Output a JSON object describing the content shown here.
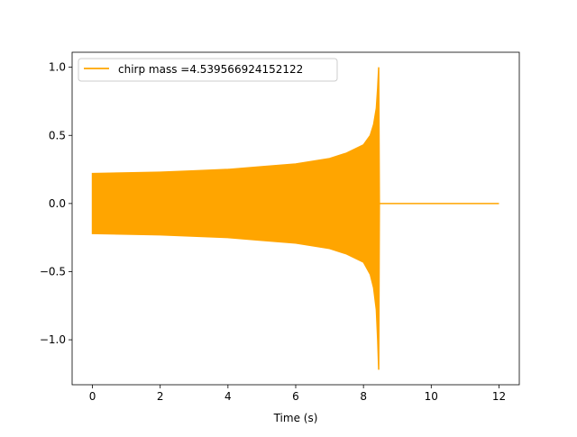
{
  "chart_data": {
    "type": "line",
    "title": "",
    "xlabel": "Time (s)",
    "ylabel": "",
    "xlim": [
      -0.6,
      12.6
    ],
    "ylim": [
      -1.33,
      1.11
    ],
    "xticks": [
      0,
      2,
      4,
      6,
      8,
      10,
      12
    ],
    "xtick_labels": [
      "0",
      "2",
      "4",
      "6",
      "8",
      "10",
      "12"
    ],
    "yticks": [
      1.0,
      0.5,
      0.0,
      -0.5,
      -1.0
    ],
    "ytick_labels": [
      "1.0",
      "0.5",
      "0.0",
      "−0.5",
      "−1.0"
    ],
    "grid": false,
    "legend_position": "top-left",
    "series": [
      {
        "name": "chirp mass =4.539566924152122",
        "color": "#ffa500",
        "description_of_marks": "dense oscillation filling envelope",
        "envelope_t": [
          0,
          1,
          2,
          3,
          4,
          5,
          6,
          7,
          7.5,
          8,
          8.2,
          8.3,
          8.38,
          8.42,
          8.45,
          8.47
        ],
        "envelope_upper": [
          0.22,
          0.225,
          0.23,
          0.24,
          0.25,
          0.27,
          0.29,
          0.33,
          0.37,
          0.43,
          0.5,
          0.58,
          0.7,
          0.85,
          1.0,
          0.0
        ],
        "envelope_lower": [
          -0.22,
          -0.225,
          -0.23,
          -0.24,
          -0.25,
          -0.27,
          -0.29,
          -0.33,
          -0.37,
          -0.43,
          -0.52,
          -0.62,
          -0.78,
          -1.0,
          -1.22,
          0.0
        ],
        "post_merger": {
          "t": [
            8.47,
            12
          ],
          "value": 0.0
        }
      }
    ]
  }
}
